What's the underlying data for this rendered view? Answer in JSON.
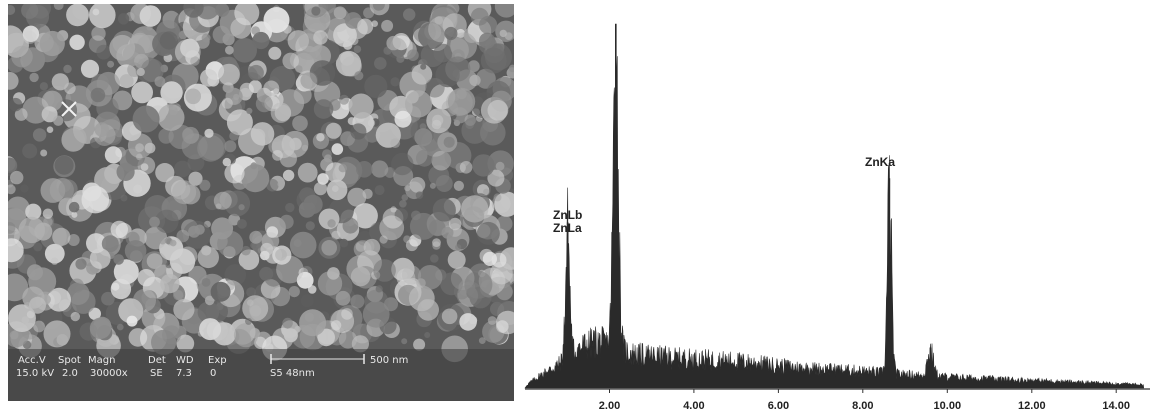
{
  "sem": {
    "footer": {
      "acc_v_label": "Acc.V",
      "acc_v_value": "15.0 kV",
      "spot_label": "Spot",
      "spot_value": "2.0",
      "magn_label": "Magn",
      "magn_value": "30000x",
      "det_label": "Det",
      "det_value": "SE",
      "wd_label": "WD",
      "wd_value": "7.3",
      "exp_label": "Exp",
      "exp_value": "0",
      "scale_label": "500 nm",
      "sample_id": "S5 48nm"
    },
    "colors": {
      "background": "#5a5a5a",
      "text": "#e8e8e8"
    }
  },
  "chart_data": {
    "type": "line",
    "title": "",
    "xlabel": "",
    "ylabel": "",
    "xlim": [
      0,
      14.8
    ],
    "ylim": [
      0,
      100
    ],
    "x_ticks": [
      "2.00",
      "4.00",
      "6.00",
      "8.00",
      "10.00",
      "12.00",
      "14.00"
    ],
    "x_tick_values": [
      2,
      4,
      6,
      8,
      10,
      12,
      14
    ],
    "grid": false,
    "legend": "none",
    "annotations": [
      {
        "lines": [
          "ZnLb",
          "ZnLa"
        ],
        "x": 1.0,
        "y": 45
      },
      {
        "lines": [
          "ZnKa"
        ],
        "x": 8.63,
        "y": 57
      }
    ],
    "peaks": [
      {
        "x": 1.01,
        "y": 45
      },
      {
        "x": 2.15,
        "y": 99
      },
      {
        "x": 8.63,
        "y": 57
      },
      {
        "x": 9.6,
        "y": 11
      }
    ],
    "baseline": [
      {
        "x": 0.05,
        "y": 1
      },
      {
        "x": 0.4,
        "y": 4
      },
      {
        "x": 0.8,
        "y": 7
      },
      {
        "x": 1.3,
        "y": 12
      },
      {
        "x": 1.7,
        "y": 14
      },
      {
        "x": 2.6,
        "y": 10
      },
      {
        "x": 3.5,
        "y": 9
      },
      {
        "x": 5.0,
        "y": 8
      },
      {
        "x": 6.5,
        "y": 6
      },
      {
        "x": 8.0,
        "y": 5
      },
      {
        "x": 9.0,
        "y": 4
      },
      {
        "x": 10.5,
        "y": 3
      },
      {
        "x": 12.5,
        "y": 2
      },
      {
        "x": 14.6,
        "y": 1
      }
    ],
    "colors": {
      "fill": "#2a2a2a",
      "axis": "#333333"
    }
  }
}
